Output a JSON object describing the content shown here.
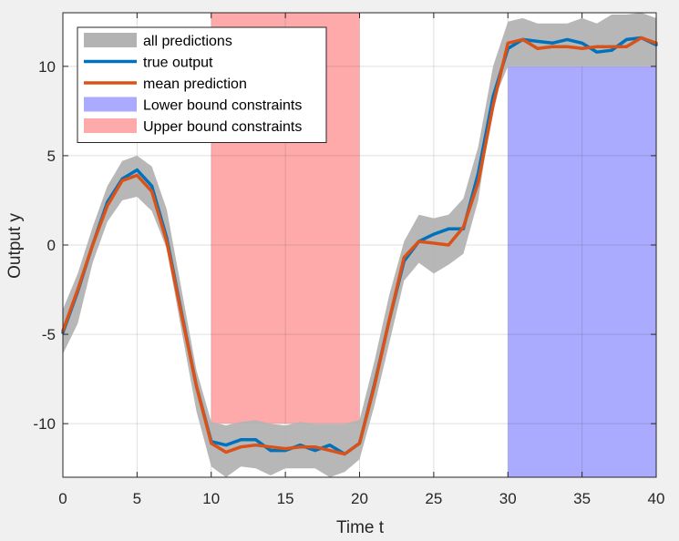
{
  "chart_data": {
    "type": "line",
    "title": "",
    "xlabel": "Time t",
    "ylabel": "Output y",
    "xlim": [
      0,
      40
    ],
    "ylim": [
      -13,
      13
    ],
    "xticks": [
      0,
      5,
      10,
      15,
      20,
      25,
      30,
      35,
      40
    ],
    "yticks": [
      -10,
      -5,
      0,
      5,
      10
    ],
    "grid": true,
    "legend_position": "top-left",
    "x": [
      0,
      1,
      2,
      3,
      4,
      5,
      6,
      7,
      8,
      9,
      10,
      11,
      12,
      13,
      14,
      15,
      16,
      17,
      18,
      19,
      20,
      21,
      22,
      23,
      24,
      25,
      26,
      27,
      28,
      29,
      30,
      31,
      32,
      33,
      34,
      35,
      36,
      37,
      38,
      39,
      40
    ],
    "series": [
      {
        "name": "all predictions",
        "kind": "band",
        "color": "#b3b3b3",
        "upper": [
          -3.6,
          -1.6,
          1.0,
          3.3,
          4.7,
          5.0,
          4.4,
          2.0,
          -2.5,
          -7.0,
          -9.9,
          -10.1,
          -9.9,
          -9.8,
          -10.0,
          -10.1,
          -9.9,
          -10.0,
          -10.0,
          -10.0,
          -9.8,
          -6.5,
          -2.8,
          0.2,
          1.7,
          1.5,
          1.7,
          2.6,
          5.5,
          10.0,
          12.5,
          12.7,
          12.4,
          12.4,
          12.4,
          12.7,
          12.4,
          12.9,
          12.9,
          13.0,
          12.7
        ],
        "lower": [
          -6.1,
          -4.4,
          -1.0,
          1.3,
          2.5,
          2.7,
          1.9,
          -0.2,
          -4.8,
          -9.3,
          -12.4,
          -13.0,
          -12.4,
          -12.5,
          -12.9,
          -12.5,
          -12.5,
          -12.5,
          -13.0,
          -12.7,
          -12.0,
          -9.0,
          -5.5,
          -2.0,
          -1.0,
          -1.6,
          -1.1,
          -0.5,
          2.5,
          8.0,
          10.0,
          10.0,
          10.0,
          10.0,
          10.0,
          10.0,
          10.0,
          10.0,
          10.0,
          10.0,
          10.0
        ]
      },
      {
        "name": "true output",
        "kind": "line",
        "color": "#0072bd",
        "values": [
          -4.9,
          -2.6,
          0.0,
          2.4,
          3.7,
          4.2,
          3.3,
          0.4,
          -3.8,
          -7.9,
          -11.0,
          -11.2,
          -10.9,
          -10.9,
          -11.5,
          -11.5,
          -11.2,
          -11.5,
          -11.2,
          -11.7,
          -11.1,
          -7.8,
          -4.2,
          -0.9,
          0.2,
          0.6,
          0.9,
          0.9,
          4.0,
          8.3,
          11.0,
          11.5,
          11.4,
          11.3,
          11.5,
          11.3,
          10.8,
          10.9,
          11.5,
          11.6,
          11.2
        ]
      },
      {
        "name": "mean prediction",
        "kind": "line",
        "color": "#d95319",
        "values": [
          -4.8,
          -2.5,
          0.0,
          2.2,
          3.6,
          3.9,
          3.0,
          0.2,
          -3.9,
          -7.9,
          -11.1,
          -11.6,
          -11.3,
          -11.2,
          -11.3,
          -11.4,
          -11.3,
          -11.3,
          -11.5,
          -11.7,
          -11.1,
          -7.9,
          -4.2,
          -0.7,
          0.2,
          0.1,
          0.0,
          1.0,
          3.5,
          7.8,
          11.3,
          11.5,
          11.0,
          11.1,
          11.1,
          11.0,
          11.1,
          11.1,
          11.1,
          11.6,
          11.3
        ]
      }
    ],
    "regions": [
      {
        "name": "Lower bound constraints",
        "color": "#aaaaff",
        "x_range": [
          30,
          40
        ],
        "y_range": [
          -13,
          10
        ]
      },
      {
        "name": "Upper bound constraints",
        "color": "#ffaaaa",
        "x_range": [
          10,
          20
        ],
        "y_range": [
          -10,
          13
        ]
      }
    ],
    "legend_order": [
      "all predictions",
      "true output",
      "mean prediction",
      "Lower bound constraints",
      "Upper bound constraints"
    ]
  }
}
